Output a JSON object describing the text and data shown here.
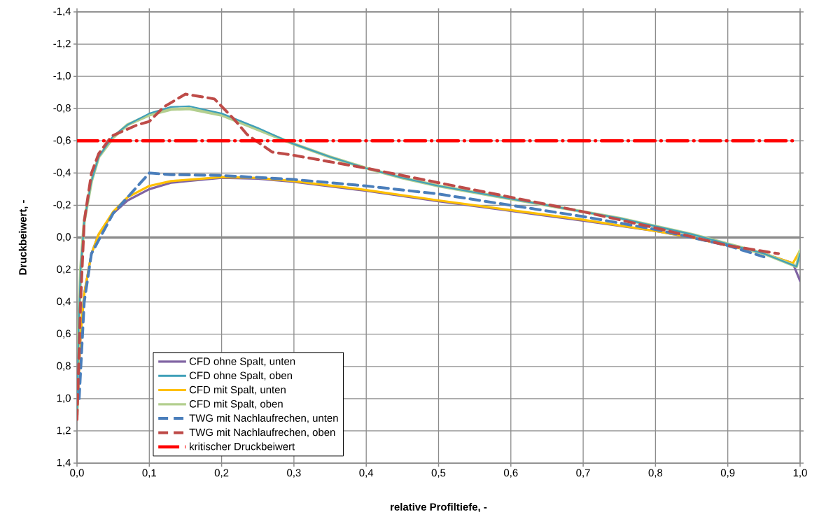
{
  "chart_data": {
    "type": "line",
    "xlabel": "relative Profiltiefe, -",
    "ylabel": "Druckbeiwert, -",
    "xlim": [
      0,
      1
    ],
    "ylim": [
      1.4,
      -1.4
    ],
    "xticks": [
      {
        "value": 0,
        "label": "0,0"
      },
      {
        "value": 0.1,
        "label": "0,1"
      },
      {
        "value": 0.2,
        "label": "0,2"
      },
      {
        "value": 0.3,
        "label": "0,3"
      },
      {
        "value": 0.4,
        "label": "0,4"
      },
      {
        "value": 0.5,
        "label": "0,5"
      },
      {
        "value": 0.6,
        "label": "0,6"
      },
      {
        "value": 0.7,
        "label": "0,7"
      },
      {
        "value": 0.8,
        "label": "0,8"
      },
      {
        "value": 0.9,
        "label": "0,9"
      },
      {
        "value": 1,
        "label": "1,0"
      }
    ],
    "yticks": [
      {
        "value": -1.4,
        "label": "-1,4"
      },
      {
        "value": -1.2,
        "label": "-1,2"
      },
      {
        "value": -1.0,
        "label": "-1,0"
      },
      {
        "value": -0.8,
        "label": "-0,8"
      },
      {
        "value": -0.6,
        "label": "-0,6"
      },
      {
        "value": -0.4,
        "label": "-0,4"
      },
      {
        "value": -0.2,
        "label": "-0,2"
      },
      {
        "value": 0,
        "label": "0,0"
      },
      {
        "value": 0.2,
        "label": "0,2"
      },
      {
        "value": 0.4,
        "label": "0,4"
      },
      {
        "value": 0.6,
        "label": "0,6"
      },
      {
        "value": 0.8,
        "label": "0,8"
      },
      {
        "value": 1.0,
        "label": "1,0"
      },
      {
        "value": 1.2,
        "label": "1,2"
      },
      {
        "value": 1.4,
        "label": "1,4"
      }
    ],
    "grid": true,
    "legend": "bottom left",
    "series": [
      {
        "name": "CFD ohne Spalt, unten",
        "color": "#7f63a2",
        "line_style": "solid",
        "x": [
          0,
          0.005,
          0.01,
          0.02,
          0.03,
          0.05,
          0.07,
          0.1,
          0.13,
          0.2,
          0.25,
          0.3,
          0.4,
          0.5,
          0.6,
          0.7,
          0.8,
          0.85,
          0.9,
          0.95,
          0.99,
          1.0
        ],
        "values": [
          1.1,
          0.6,
          0.35,
          0.1,
          -0.02,
          -0.15,
          -0.23,
          -0.3,
          -0.34,
          -0.37,
          -0.365,
          -0.345,
          -0.29,
          -0.225,
          -0.165,
          -0.105,
          -0.04,
          0.0,
          0.05,
          0.1,
          0.16,
          0.27
        ]
      },
      {
        "name": "CFD ohne Spalt, oben",
        "color": "#3f9fb8",
        "line_style": "solid",
        "x": [
          0,
          0.002,
          0.005,
          0.01,
          0.02,
          0.03,
          0.05,
          0.07,
          0.1,
          0.13,
          0.155,
          0.2,
          0.25,
          0.3,
          0.35,
          0.4,
          0.45,
          0.5,
          0.55,
          0.6,
          0.65,
          0.7,
          0.75,
          0.8,
          0.85,
          0.9,
          0.95,
          0.995,
          1.0
        ],
        "values": [
          1.1,
          0.6,
          0.2,
          -0.1,
          -0.35,
          -0.5,
          -0.63,
          -0.7,
          -0.77,
          -0.81,
          -0.815,
          -0.77,
          -0.68,
          -0.58,
          -0.5,
          -0.43,
          -0.37,
          -0.32,
          -0.28,
          -0.24,
          -0.2,
          -0.16,
          -0.12,
          -0.07,
          -0.02,
          0.04,
          0.1,
          0.18,
          0.1
        ]
      },
      {
        "name": "CFD mit Spalt, unten",
        "color": "#ffc000",
        "line_style": "solid",
        "x": [
          0,
          0.005,
          0.01,
          0.02,
          0.03,
          0.05,
          0.07,
          0.1,
          0.13,
          0.2,
          0.25,
          0.3,
          0.4,
          0.5,
          0.6,
          0.7,
          0.8,
          0.85,
          0.9,
          0.95,
          0.99,
          1.0
        ],
        "values": [
          1.1,
          0.6,
          0.35,
          0.1,
          -0.02,
          -0.16,
          -0.25,
          -0.32,
          -0.35,
          -0.375,
          -0.37,
          -0.35,
          -0.295,
          -0.23,
          -0.17,
          -0.11,
          -0.04,
          0.0,
          0.05,
          0.1,
          0.16,
          0.08
        ]
      },
      {
        "name": "CFD mit Spalt, oben",
        "color": "#b3cf8f",
        "line_style": "solid",
        "x": [
          0,
          0.002,
          0.005,
          0.01,
          0.02,
          0.03,
          0.05,
          0.07,
          0.1,
          0.13,
          0.155,
          0.2,
          0.25,
          0.3,
          0.35,
          0.4,
          0.45,
          0.5,
          0.55,
          0.6,
          0.65,
          0.7,
          0.75,
          0.8,
          0.85,
          0.9,
          0.95,
          0.995,
          1.0
        ],
        "values": [
          1.1,
          0.6,
          0.2,
          -0.1,
          -0.35,
          -0.5,
          -0.62,
          -0.7,
          -0.76,
          -0.795,
          -0.8,
          -0.76,
          -0.67,
          -0.58,
          -0.5,
          -0.43,
          -0.37,
          -0.32,
          -0.28,
          -0.24,
          -0.2,
          -0.16,
          -0.12,
          -0.07,
          -0.02,
          0.04,
          0.1,
          0.18,
          0.08
        ]
      },
      {
        "name": "TWG mit Nachlaufrechen, unten",
        "color": "#4a7ebb",
        "line_style": "dashed",
        "x": [
          0.003,
          0.01,
          0.02,
          0.05,
          0.07,
          0.09,
          0.1,
          0.13,
          0.2,
          0.3,
          0.4,
          0.5,
          0.6,
          0.7,
          0.8,
          0.9,
          0.95
        ],
        "values": [
          1.0,
          0.4,
          0.1,
          -0.15,
          -0.25,
          -0.35,
          -0.4,
          -0.39,
          -0.385,
          -0.36,
          -0.32,
          -0.27,
          -0.2,
          -0.13,
          -0.05,
          0.05,
          0.12
        ]
      },
      {
        "name": "TWG mit Nachlaufrechen, oben",
        "color": "#be4b48",
        "line_style": "dashed",
        "x": [
          0,
          0.005,
          0.01,
          0.02,
          0.03,
          0.048,
          0.084,
          0.1,
          0.12,
          0.15,
          0.19,
          0.218,
          0.235,
          0.27,
          0.3,
          0.35,
          0.4,
          0.5,
          0.6,
          0.7,
          0.8,
          0.9,
          0.97
        ],
        "values": [
          1.13,
          0.4,
          -0.1,
          -0.4,
          -0.52,
          -0.63,
          -0.7,
          -0.72,
          -0.81,
          -0.89,
          -0.86,
          -0.73,
          -0.64,
          -0.53,
          -0.51,
          -0.47,
          -0.43,
          -0.34,
          -0.25,
          -0.16,
          -0.06,
          0.05,
          0.1
        ]
      },
      {
        "name": "kritischer Druckbeiwert",
        "color": "#ff0000",
        "line_style": "dashdot",
        "x": [
          0,
          0.99
        ],
        "values": [
          -0.6,
          -0.6
        ]
      }
    ]
  }
}
